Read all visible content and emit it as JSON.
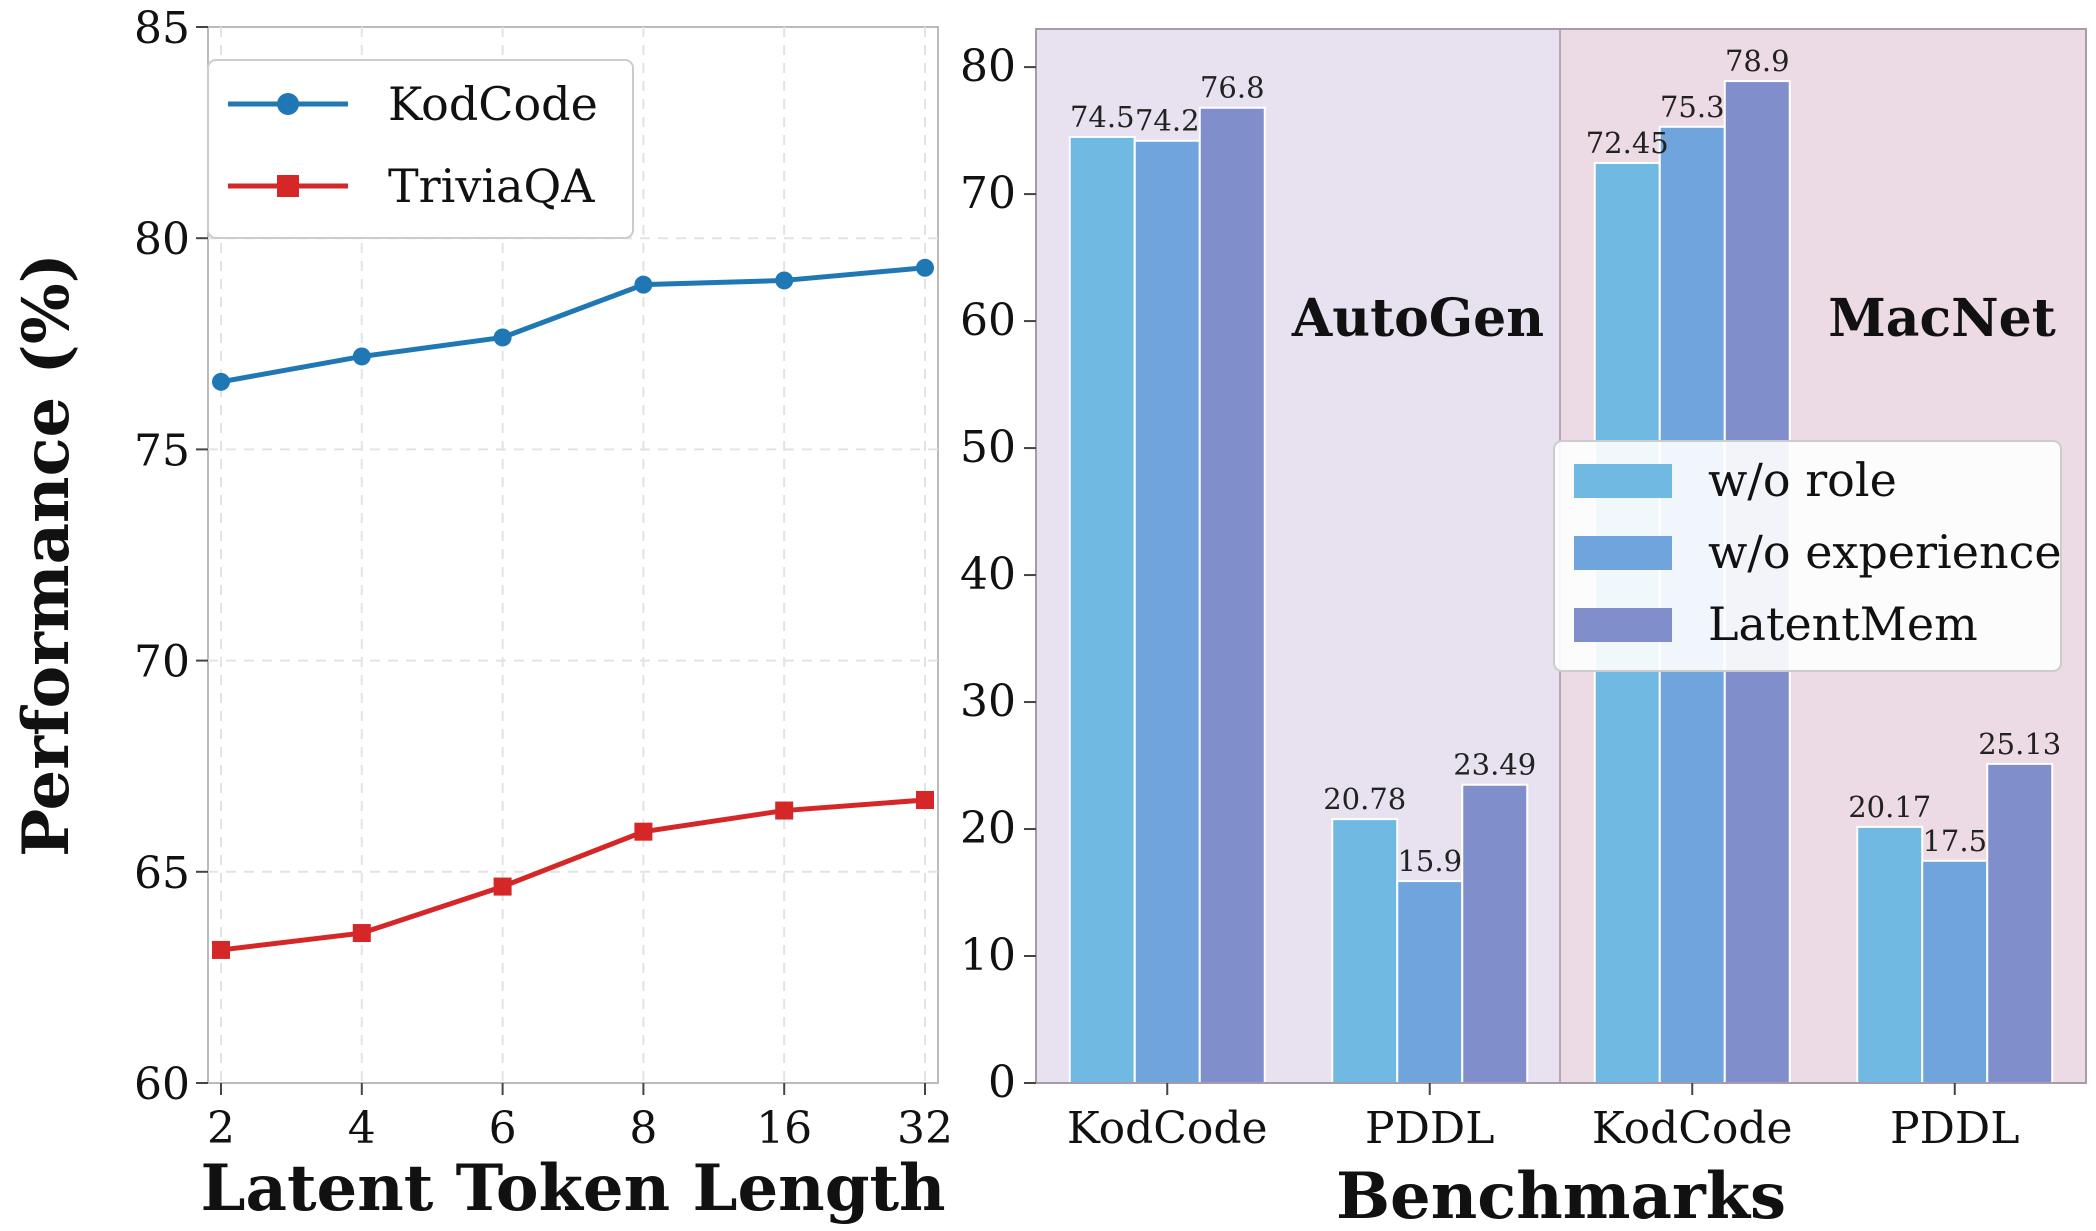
{
  "chart_data": [
    {
      "type": "line",
      "title": "",
      "xlabel": "Latent Token Length",
      "ylabel": "Performance (%)",
      "x": [
        "2",
        "4",
        "6",
        "8",
        "16",
        "32"
      ],
      "yticks": [
        "60",
        "65",
        "70",
        "75",
        "80",
        "85"
      ],
      "ylim": [
        60,
        85
      ],
      "grid": true,
      "legend_position": "top-left",
      "series": [
        {
          "name": "KodCode",
          "color": "#1f77b4",
          "marker": "circle",
          "values": [
            76.6,
            77.2,
            77.65,
            78.9,
            79.0,
            79.3
          ]
        },
        {
          "name": "TriviaQA",
          "color": "#d62728",
          "marker": "square",
          "values": [
            63.15,
            63.55,
            64.65,
            65.95,
            66.45,
            66.7
          ]
        }
      ]
    },
    {
      "type": "bar",
      "title": "",
      "xlabel": "Benchmarks",
      "ylabel": "",
      "categories": [
        "KodCode",
        "PDDL",
        "KodCode",
        "PDDL"
      ],
      "yticks": [
        "0",
        "10",
        "20",
        "30",
        "40",
        "50",
        "60",
        "70",
        "80"
      ],
      "ylim": [
        0,
        83
      ],
      "legend_position": "center-right",
      "groups": [
        {
          "label": "AutoGen",
          "background": "#e8e1f0"
        },
        {
          "label": "MacNet",
          "background": "#ecdbe4"
        }
      ],
      "series": [
        {
          "name": "w/o role",
          "color": "#6fb9e2",
          "values": [
            74.5,
            20.78,
            72.45,
            20.17
          ],
          "labels": [
            "74.5",
            "20.78",
            "72.45",
            "20.17"
          ]
        },
        {
          "name": "w/o experience",
          "color": "#70a4dc",
          "values": [
            74.2,
            15.9,
            75.3,
            17.5
          ],
          "labels": [
            "74.2",
            "15.9",
            "75.3",
            "17.5"
          ]
        },
        {
          "name": "LatentMem",
          "color": "#808fcc",
          "values": [
            76.8,
            23.49,
            78.9,
            25.13
          ],
          "labels": [
            "76.8",
            "23.49",
            "78.9",
            "25.13"
          ]
        }
      ]
    }
  ]
}
